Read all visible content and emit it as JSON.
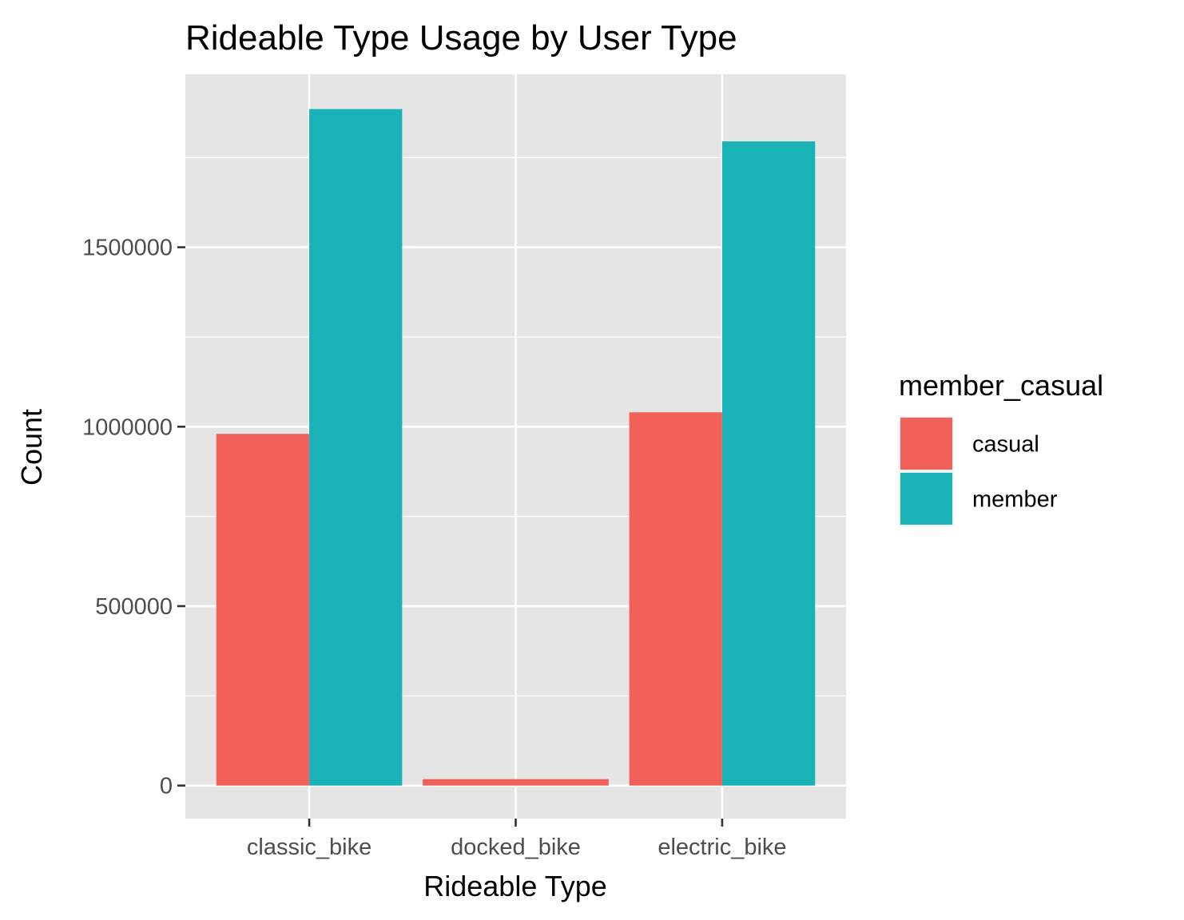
{
  "chart_data": {
    "type": "bar",
    "title": "Rideable Type Usage by User Type",
    "xlabel": "Rideable Type",
    "ylabel": "Count",
    "categories": [
      "classic_bike",
      "docked_bike",
      "electric_bike"
    ],
    "series": [
      {
        "name": "casual",
        "color": "#f2605a",
        "values": [
          980000,
          18000,
          1040000
        ]
      },
      {
        "name": "member",
        "color": "#19b3b7",
        "values": [
          1885000,
          null,
          1795000
        ]
      }
    ],
    "ylim": [
      -92000,
      1982000
    ],
    "yticks": [
      0,
      500000,
      1000000,
      1500000
    ],
    "ytick_labels": [
      "0",
      "500000",
      "1000000",
      "1500000"
    ],
    "grid": true,
    "legend": {
      "title": "member_casual",
      "position": "right"
    },
    "colors": {
      "panel_background": "#e5e5e5",
      "grid": "#ffffff",
      "tick_text": "#4d4d4d"
    }
  }
}
